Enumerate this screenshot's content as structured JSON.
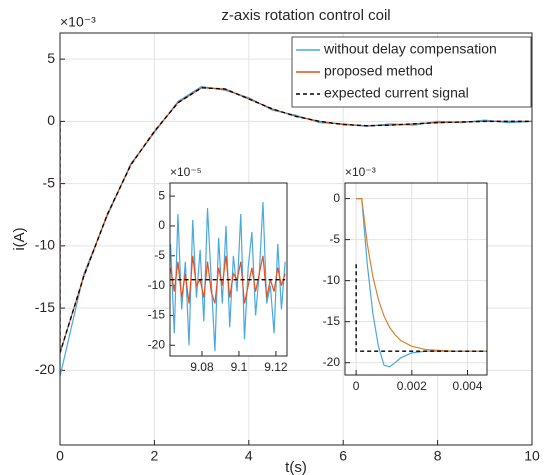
{
  "chart_data": [
    {
      "type": "line",
      "title": "z-axis rotation control coil",
      "xlabel": "t(s)",
      "ylabel": "i(A)",
      "multiplier": "×10⁻³",
      "xlim": [
        0,
        10
      ],
      "xticks": [
        0,
        2,
        4,
        6,
        8,
        10
      ],
      "ylim": [
        -26,
        7.1
      ],
      "yticks": [
        -20,
        -15,
        -10,
        -5,
        0,
        5
      ],
      "grid": true,
      "legend": "top-right",
      "series": [
        {
          "name": "without delay compensation",
          "color": "#4aa8e0",
          "dash": "solid",
          "x": [
            0,
            0,
            0.5,
            1,
            1.5,
            2,
            2.5,
            3,
            3.5,
            4,
            4.5,
            5,
            5.5,
            6,
            6.5,
            7,
            7.5,
            8,
            8.5,
            9,
            9.5,
            10
          ],
          "values": [
            0,
            -20.5,
            -12.3,
            -7.6,
            -3.4,
            -0.9,
            1.6,
            2.8,
            2.5,
            1.9,
            0.9,
            0.5,
            -0.1,
            -0.2,
            -0.4,
            -0.2,
            -0.3,
            0,
            -0.1,
            0.1,
            -0.1,
            0
          ]
        },
        {
          "name": "proposed method",
          "color": "#d95319",
          "dash": "solid",
          "x": [
            0,
            0,
            0.5,
            1,
            1.5,
            2,
            2.5,
            3,
            3.5,
            4,
            4.5,
            5,
            5.5,
            6,
            6.5,
            7,
            7.5,
            8,
            8.5,
            9,
            9.5,
            10
          ],
          "values": [
            0,
            -18.6,
            -12.5,
            -7.5,
            -3.5,
            -0.8,
            1.5,
            2.7,
            2.6,
            1.8,
            1.0,
            0.4,
            0,
            -0.25,
            -0.35,
            -0.3,
            -0.2,
            -0.1,
            -0.05,
            0,
            0,
            0
          ]
        },
        {
          "name": "expected current signal",
          "color": "#000000",
          "dash": "dashed",
          "x": [
            0,
            0,
            0.5,
            1,
            1.5,
            2,
            2.5,
            3,
            3.5,
            4,
            4.5,
            5,
            5.5,
            6,
            6.5,
            7,
            7.5,
            8,
            8.5,
            9,
            9.5,
            10
          ],
          "values": [
            0,
            -18.6,
            -12.5,
            -7.5,
            -3.5,
            -0.8,
            1.5,
            2.7,
            2.6,
            1.8,
            1.0,
            0.4,
            0,
            -0.25,
            -0.35,
            -0.3,
            -0.2,
            -0.1,
            -0.05,
            0,
            0,
            0
          ]
        }
      ]
    },
    {
      "type": "line",
      "multiplier": "×10⁻⁵",
      "xlim": [
        9.0627,
        9.126
      ],
      "xticks": [
        9.08,
        9.1,
        9.12
      ],
      "ylim": [
        -21.8,
        7.2
      ],
      "yticks": [
        -20,
        -15,
        -10,
        -5,
        0,
        5
      ],
      "grid": false,
      "series": [
        {
          "color": "#4aa8e0",
          "dash": "solid",
          "x": [
            9.063,
            9.065,
            9.067,
            9.069,
            9.071,
            9.073,
            9.075,
            9.077,
            9.079,
            9.081,
            9.083,
            9.085,
            9.087,
            9.089,
            9.091,
            9.093,
            9.095,
            9.097,
            9.099,
            9.101,
            9.103,
            9.105,
            9.107,
            9.109,
            9.111,
            9.113,
            9.115,
            9.117,
            9.119,
            9.121,
            9.123,
            9.125
          ],
          "values": [
            -3,
            -18,
            2,
            -14,
            -6,
            -20,
            1,
            -12,
            -4,
            -16,
            3,
            -9,
            -21,
            -2,
            -13,
            0,
            -17,
            -5,
            -11,
            2,
            -19,
            -7,
            -1,
            -15,
            -8,
            4,
            -13,
            -10,
            -18,
            -3,
            -14,
            -6
          ]
        },
        {
          "color": "#e8501c",
          "dash": "solid",
          "x": [
            9.063,
            9.065,
            9.067,
            9.069,
            9.071,
            9.073,
            9.075,
            9.077,
            9.079,
            9.081,
            9.083,
            9.085,
            9.087,
            9.089,
            9.091,
            9.093,
            9.095,
            9.097,
            9.099,
            9.101,
            9.103,
            9.105,
            9.107,
            9.109,
            9.111,
            9.113,
            9.115,
            9.117,
            9.119,
            9.121,
            9.123,
            9.125
          ],
          "values": [
            -7,
            -11,
            -6,
            -12,
            -8,
            -13,
            -5,
            -10,
            -9,
            -12,
            -6,
            -11,
            -13,
            -7,
            -10,
            -5,
            -12,
            -8,
            -9,
            -6,
            -13,
            -10,
            -7,
            -11,
            -8,
            -5,
            -12,
            -9,
            -11,
            -7,
            -10,
            -8
          ]
        },
        {
          "color": "#000000",
          "dash": "dashed",
          "x": [
            9.063,
            9.125
          ],
          "values": [
            -9,
            -9
          ]
        }
      ]
    },
    {
      "type": "line",
      "multiplier": "×10⁻³",
      "xlim": [
        -0.0004,
        0.0047
      ],
      "xticks": [
        0,
        0.002,
        0.004
      ],
      "ylim": [
        -21.5,
        1.9
      ],
      "yticks": [
        -20,
        -15,
        -10,
        -5,
        0
      ],
      "grid": true,
      "series": [
        {
          "color": "#4aa8e0",
          "dash": "solid",
          "x": [
            0,
            0.0002,
            0.0004,
            0.0006,
            0.0008,
            0.001,
            0.0012,
            0.0014,
            0.0016,
            0.002,
            0.0025,
            0.003,
            0.0035,
            0.004,
            0.0047
          ],
          "values": [
            0,
            0,
            -8,
            -14,
            -18,
            -20.3,
            -20.5,
            -20,
            -19.4,
            -18.8,
            -18.6,
            -18.6,
            -18.6,
            -18.6,
            -18.6
          ]
        },
        {
          "color": "#d9822b",
          "dash": "solid",
          "x": [
            0,
            0.0002,
            0.0004,
            0.0006,
            0.0008,
            0.001,
            0.0012,
            0.0014,
            0.0016,
            0.002,
            0.0025,
            0.003,
            0.0035,
            0.004,
            0.0047
          ],
          "values": [
            0,
            0,
            -5.5,
            -9.5,
            -12.3,
            -14.3,
            -15.7,
            -16.6,
            -17.3,
            -18,
            -18.4,
            -18.5,
            -18.6,
            -18.6,
            -18.6
          ]
        },
        {
          "color": "#000000",
          "dash": "dashed",
          "x": [
            0,
            0,
            0.0047
          ],
          "values": [
            -8,
            -18.6,
            -18.6
          ]
        }
      ]
    }
  ]
}
